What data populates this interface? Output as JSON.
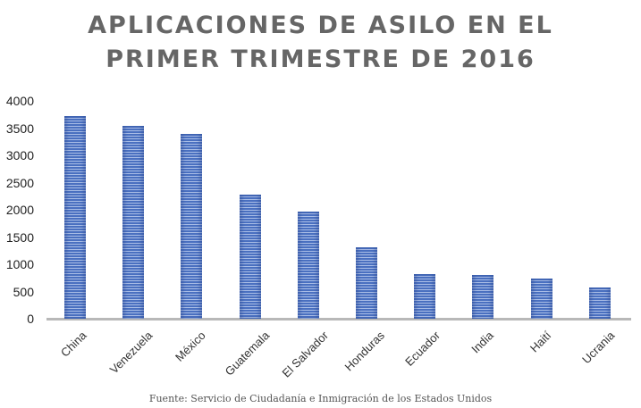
{
  "chart_data": {
    "type": "bar",
    "title": "APLICACIONES DE ASILO EN EL PRIMER TRIMESTRE DE 2016",
    "title_lines": [
      "APLICACIONES DE ASILO EN EL",
      "PRIMER TRIMESTRE DE 2016"
    ],
    "categories": [
      "China",
      "Venezuela",
      "México",
      "Guatemala",
      "El Salvador",
      "Honduras",
      "Ecuador",
      "India",
      "Haití",
      "Ucrania"
    ],
    "values": [
      3720,
      3540,
      3390,
      2280,
      1970,
      1310,
      820,
      800,
      740,
      570
    ],
    "xlabel": "",
    "ylabel": "",
    "ylim": [
      0,
      4000
    ],
    "yticks": [
      "0",
      "500",
      "1000",
      "1500",
      "2000",
      "2500",
      "3000",
      "3500",
      "4000"
    ],
    "grid": false,
    "legend": null,
    "bar_color": "#4a70c0",
    "source": "Fuente: Servicio de Ciudadanía e Inmigración de los Estados Unidos"
  }
}
